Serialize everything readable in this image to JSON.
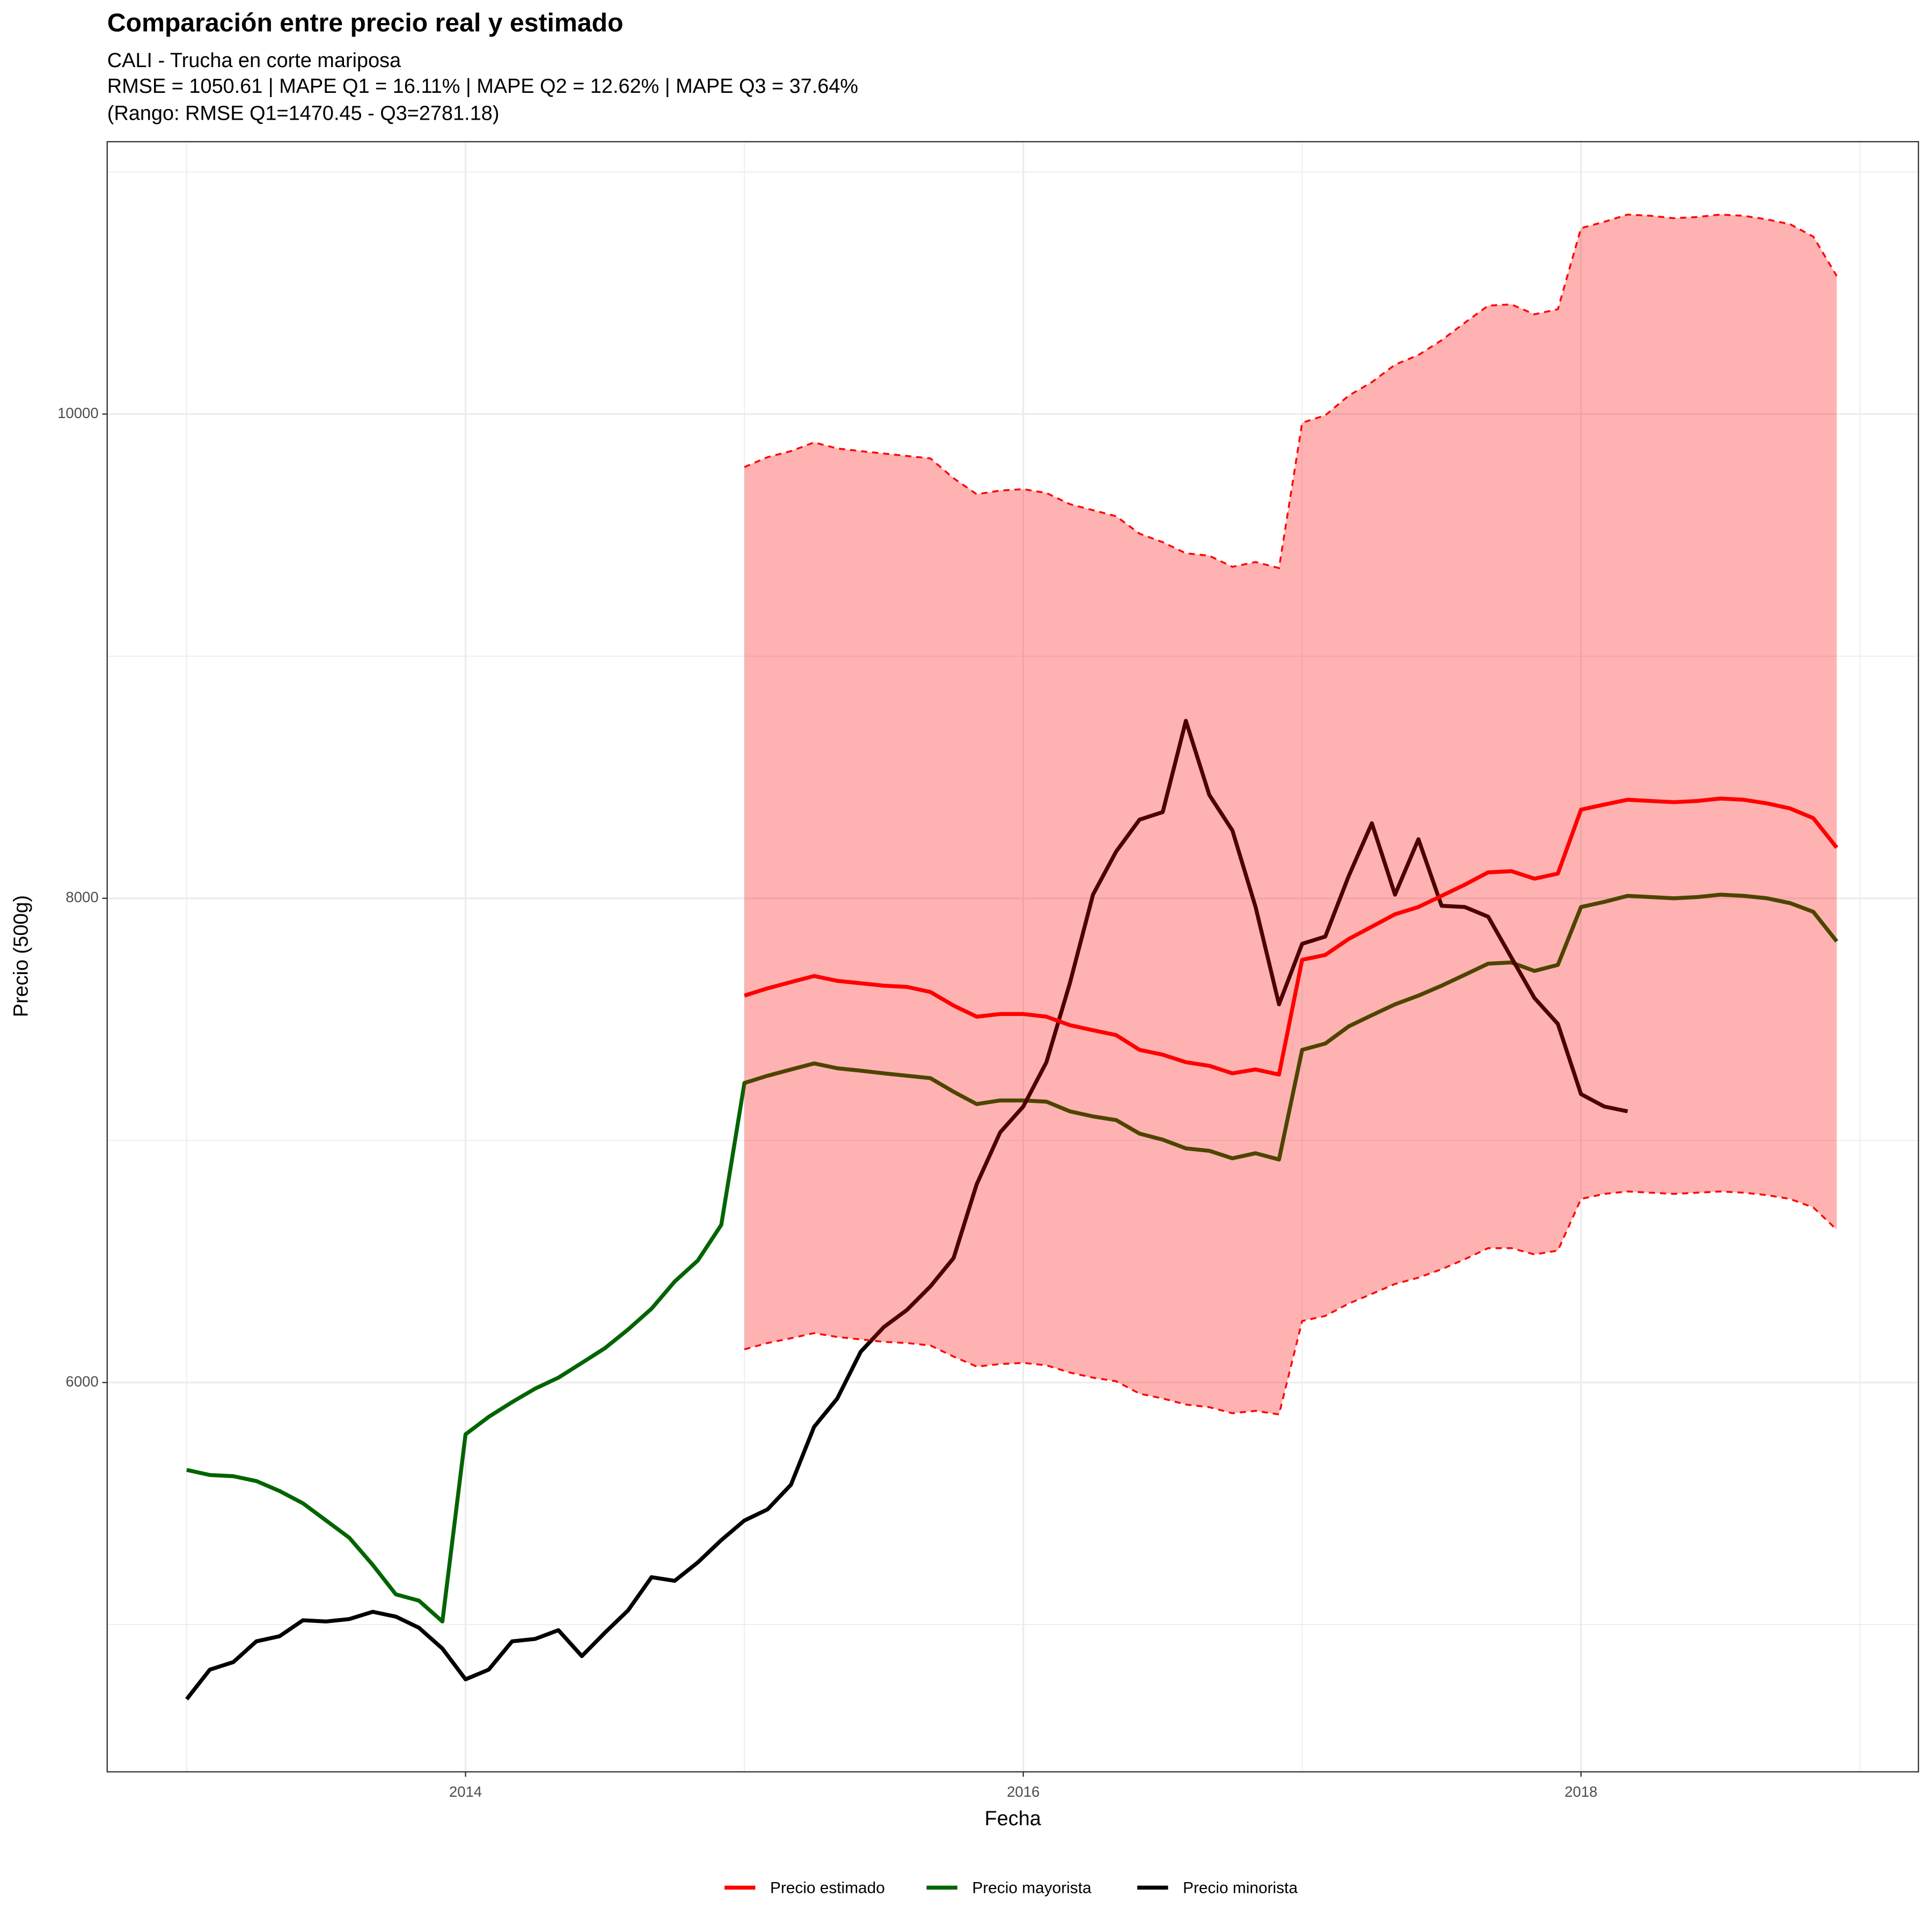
{
  "chart_data": {
    "type": "line",
    "title": "Comparación entre precio real y estimado",
    "subtitle": [
      "CALI - Trucha en corte mariposa",
      "RMSE = 1050.61 | MAPE Q1 = 16.11% | MAPE Q2 = 12.62% | MAPE Q3 = 37.64%",
      "(Rango: RMSE Q1=1470.45 - Q3=2781.18)"
    ],
    "x_label": "Fecha",
    "y_label": "Precio (500g)",
    "xlim": [
      2012.715,
      2019.21
    ],
    "ylim": [
      4392,
      11125
    ],
    "xticks": [
      2014,
      2016,
      2018
    ],
    "yticks": [
      6000,
      8000,
      10000
    ],
    "minor_xticks": [
      2013,
      2015,
      2017,
      2019
    ],
    "minor_yticks": [
      5000,
      7000,
      9000,
      11000
    ],
    "grid": true,
    "legend": "bottom",
    "x": [
      2013,
      2013.083,
      2013.167,
      2013.25,
      2013.333,
      2013.417,
      2013.5,
      2013.583,
      2013.667,
      2013.75,
      2013.833,
      2013.917,
      2014,
      2014.083,
      2014.167,
      2014.25,
      2014.333,
      2014.417,
      2014.5,
      2014.583,
      2014.667,
      2014.75,
      2014.833,
      2014.917,
      2015,
      2015.083,
      2015.167,
      2015.25,
      2015.333,
      2015.417,
      2015.5,
      2015.583,
      2015.667,
      2015.75,
      2015.833,
      2015.917,
      2016,
      2016.083,
      2016.167,
      2016.25,
      2016.333,
      2016.417,
      2016.5,
      2016.583,
      2016.667,
      2016.75,
      2016.833,
      2016.917,
      2017,
      2017.083,
      2017.167,
      2017.25,
      2017.333,
      2017.417,
      2017.5,
      2017.583,
      2017.667,
      2017.75,
      2017.833,
      2017.917,
      2018,
      2018.083,
      2018.167,
      2018.25,
      2018.333,
      2018.417,
      2018.5,
      2018.583,
      2018.667,
      2018.75,
      2018.833,
      2018.917
    ],
    "band": {
      "color": "#ff0000",
      "upper": [
        null,
        null,
        null,
        null,
        null,
        null,
        null,
        null,
        null,
        null,
        null,
        null,
        null,
        null,
        null,
        null,
        null,
        null,
        null,
        null,
        null,
        null,
        null,
        null,
        9781,
        9822,
        9847,
        9883,
        9858,
        9847,
        9837,
        9827,
        9817,
        9735,
        9669,
        9684,
        9690,
        9674,
        9628,
        9603,
        9578,
        9506,
        9471,
        9425,
        9415,
        9369,
        9389,
        9364,
        9964,
        9995,
        10076,
        10132,
        10204,
        10244,
        10305,
        10377,
        10448,
        10453,
        10412,
        10433,
        10768,
        10794,
        10824,
        10819,
        10809,
        10814,
        10824,
        10819,
        10804,
        10784,
        10733,
        10570
      ],
      "lower": [
        null,
        null,
        null,
        null,
        null,
        null,
        null,
        null,
        null,
        null,
        null,
        null,
        null,
        null,
        null,
        null,
        null,
        null,
        null,
        null,
        null,
        null,
        null,
        null,
        6137,
        6163,
        6183,
        6204,
        6188,
        6178,
        6168,
        6163,
        6153,
        6107,
        6066,
        6076,
        6081,
        6071,
        6041,
        6020,
        6005,
        5954,
        5934,
        5909,
        5898,
        5873,
        5883,
        5868,
        6254,
        6275,
        6326,
        6366,
        6407,
        6433,
        6468,
        6509,
        6555,
        6555,
        6529,
        6545,
        6758,
        6779,
        6789,
        6784,
        6779,
        6784,
        6789,
        6784,
        6774,
        6758,
        6723,
        6631
      ]
    },
    "series": [
      {
        "name": "Precio estimado",
        "color": "#ff0000",
        "values": [
          null,
          null,
          null,
          null,
          null,
          null,
          null,
          null,
          null,
          null,
          null,
          null,
          null,
          null,
          null,
          null,
          null,
          null,
          null,
          null,
          null,
          null,
          null,
          null,
          7598,
          7628,
          7654,
          7679,
          7659,
          7649,
          7639,
          7634,
          7613,
          7557,
          7511,
          7522,
          7522,
          7511,
          7476,
          7455,
          7435,
          7374,
          7354,
          7323,
          7308,
          7277,
          7293,
          7272,
          7746,
          7766,
          7832,
          7883,
          7934,
          7964,
          8010,
          8056,
          8107,
          8112,
          8081,
          8102,
          8366,
          8387,
          8407,
          8402,
          8397,
          8402,
          8412,
          8407,
          8392,
          8371,
          8331,
          8209
        ]
      },
      {
        "name": "Precio mayorista",
        "color": "#006400",
        "values": [
          5639,
          5618,
          5613,
          5593,
          5552,
          5501,
          5430,
          5359,
          5247,
          5125,
          5099,
          5013,
          5786,
          5858,
          5919,
          5975,
          6020,
          6081,
          6142,
          6219,
          6305,
          6417,
          6504,
          6651,
          7237,
          7267,
          7293,
          7318,
          7298,
          7288,
          7277,
          7267,
          7257,
          7201,
          7150,
          7165,
          7165,
          7160,
          7120,
          7099,
          7084,
          7028,
          7003,
          6967,
          6957,
          6926,
          6947,
          6921,
          7374,
          7400,
          7471,
          7517,
          7562,
          7598,
          7639,
          7684,
          7730,
          7735,
          7700,
          7725,
          7964,
          7985,
          8010,
          8005,
          8000,
          8005,
          8015,
          8010,
          8000,
          7980,
          7944,
          7822
        ]
      },
      {
        "name": "Precio minorista",
        "color": "#000000",
        "values": [
          4692,
          4814,
          4845,
          4931,
          4952,
          5018,
          5013,
          5023,
          5053,
          5033,
          4987,
          4901,
          4774,
          4814,
          4931,
          4941,
          4977,
          4870,
          4967,
          5059,
          5196,
          5181,
          5257,
          5349,
          5430,
          5476,
          5578,
          5817,
          5934,
          6127,
          6229,
          6300,
          6397,
          6514,
          6819,
          7033,
          7140,
          7323,
          7649,
          8015,
          8193,
          8325,
          8356,
          8733,
          8427,
          8280,
          7964,
          7562,
          7812,
          7842,
          8092,
          8310,
          8015,
          8244,
          7969,
          7964,
          7924,
          7756,
          7588,
          7481,
          7191,
          7140,
          7120,
          null,
          null,
          null,
          null,
          null,
          null,
          null,
          null,
          null
        ]
      }
    ]
  }
}
